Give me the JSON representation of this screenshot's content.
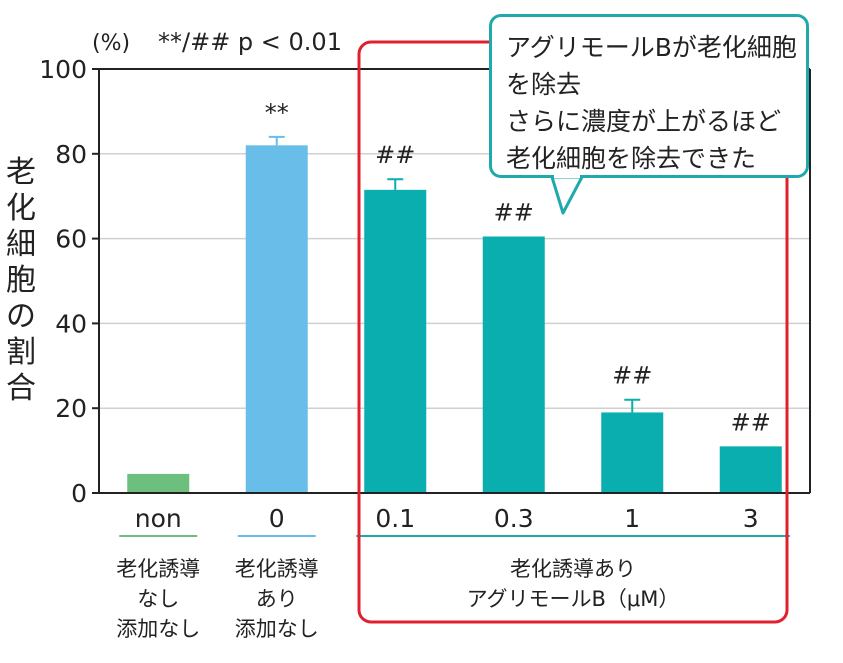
{
  "chart_data": {
    "type": "bar",
    "ylabel": "老化細胞の割合",
    "yunit": "(%)",
    "significance_note": "**/## p < 0.01",
    "ylim": [
      0,
      100
    ],
    "yticks": [
      0,
      20,
      40,
      60,
      80,
      100
    ],
    "grid": true,
    "categories": [
      "non",
      "0",
      "0.1",
      "0.3",
      "1",
      "3"
    ],
    "values": [
      4.5,
      82,
      71.5,
      60.5,
      19,
      11
    ],
    "errors": [
      0,
      2,
      2.5,
      0,
      3,
      0
    ],
    "significance": [
      "",
      "**",
      "##",
      "##",
      "##",
      "##"
    ],
    "bar_colors": [
      "#6dbf7e",
      "#68bde9",
      "#0aaeaf",
      "#0aaeaf",
      "#0aaeaf",
      "#0aaeaf"
    ],
    "groups": [
      {
        "label": [
          "老化誘導",
          "なし",
          "添加なし"
        ],
        "color": "#6dbf7e"
      },
      {
        "label": [
          "老化誘導",
          "あり",
          "添加なし"
        ],
        "color": "#68bde9"
      },
      {
        "label": [
          "老化誘導あり",
          "アグリモールB（μM）"
        ],
        "color": "#1fa9ad"
      }
    ]
  },
  "callout": {
    "lines": [
      "アグリモールBが老化細胞",
      "を除去",
      "さらに濃度が上がるほど",
      "老化細胞を除去できた"
    ]
  },
  "colors": {
    "highlight_box": "#e0202e",
    "callout_border": "#1fa9ad",
    "grid": "#d0d0d0"
  }
}
